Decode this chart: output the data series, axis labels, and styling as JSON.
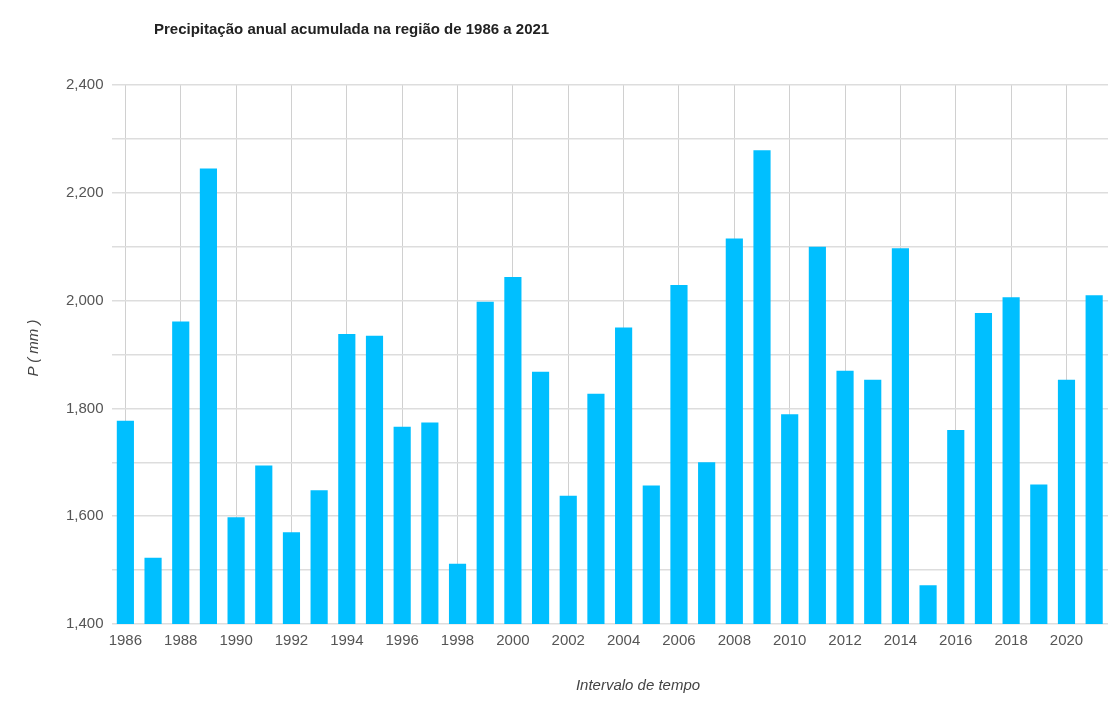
{
  "chart_data": {
    "type": "bar",
    "title": "Precipitação anual acumulada na região de 1986 a 2021",
    "xlabel": "Intervalo de tempo",
    "ylabel": "P ( mm )",
    "categories": [
      "1986",
      null,
      "1988",
      null,
      "1990",
      null,
      "1992",
      null,
      "1994",
      null,
      "1996",
      null,
      "1998",
      null,
      "2000",
      null,
      "2002",
      null,
      "2004",
      null,
      "2006",
      null,
      "2008",
      null,
      "2010",
      null,
      "2012",
      null,
      "2014",
      null,
      "2016",
      null,
      "2018",
      null,
      "2020",
      null
    ],
    "values": [
      1777,
      1523,
      1961,
      2245,
      1598,
      1694,
      1570,
      1648,
      1938,
      1935,
      1766,
      1774,
      1512,
      1998,
      2044,
      1868,
      1638,
      1827,
      1950,
      1657,
      2029,
      1700,
      2115,
      2279,
      1789,
      2100,
      1870,
      1853,
      2097,
      1472,
      1760,
      1977,
      2006,
      1659,
      1853,
      2010
    ],
    "color": "#00bfff",
    "ylim": [
      1400,
      2400
    ],
    "yticks": [
      {
        "value": 1400,
        "label": "1,400"
      },
      {
        "value": 1500,
        "label": null
      },
      {
        "value": 1600,
        "label": "1,600"
      },
      {
        "value": 1700,
        "label": null
      },
      {
        "value": 1800,
        "label": "1,800"
      },
      {
        "value": 1900,
        "label": null
      },
      {
        "value": 2000,
        "label": "2,000"
      },
      {
        "value": 2100,
        "label": null
      },
      {
        "value": 2200,
        "label": "2,200"
      },
      {
        "value": 2300,
        "label": null
      },
      {
        "value": 2400,
        "label": "2,400"
      }
    ],
    "grid": true,
    "legend": false
  }
}
